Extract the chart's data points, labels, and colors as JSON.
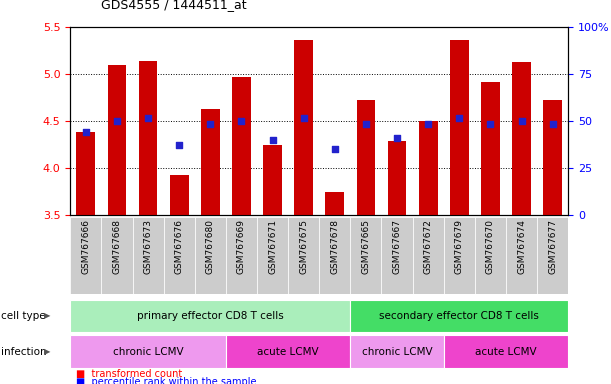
{
  "title": "GDS4555 / 1444511_at",
  "samples": [
    "GSM767666",
    "GSM767668",
    "GSM767673",
    "GSM767676",
    "GSM767680",
    "GSM767669",
    "GSM767671",
    "GSM767675",
    "GSM767678",
    "GSM767665",
    "GSM767667",
    "GSM767672",
    "GSM767679",
    "GSM767670",
    "GSM767674",
    "GSM767677"
  ],
  "bar_values": [
    4.38,
    5.09,
    5.14,
    3.93,
    4.63,
    4.97,
    4.24,
    5.36,
    3.74,
    4.72,
    4.29,
    4.5,
    5.36,
    4.91,
    5.13,
    4.72
  ],
  "dot_values": [
    4.38,
    4.5,
    4.53,
    4.24,
    4.47,
    4.5,
    4.3,
    4.53,
    4.2,
    4.47,
    4.32,
    4.47,
    4.53,
    4.47,
    4.5,
    4.47
  ],
  "ylim": [
    3.5,
    5.5
  ],
  "yticks": [
    3.5,
    4.0,
    4.5,
    5.0,
    5.5
  ],
  "right_yticks": [
    0,
    25,
    50,
    75,
    100
  ],
  "right_ytick_labels": [
    "0",
    "25",
    "50",
    "75",
    "100%"
  ],
  "bar_color": "#CC0000",
  "dot_color": "#2222CC",
  "bar_width": 0.6,
  "cell_type_groups": [
    {
      "label": "primary effector CD8 T cells",
      "start": 0,
      "end": 8,
      "color": "#AAEEBB"
    },
    {
      "label": "secondary effector CD8 T cells",
      "start": 9,
      "end": 15,
      "color": "#44DD66"
    }
  ],
  "infection_groups": [
    {
      "label": "chronic LCMV",
      "start": 0,
      "end": 4,
      "color": "#EE99EE"
    },
    {
      "label": "acute LCMV",
      "start": 5,
      "end": 8,
      "color": "#EE44CC"
    },
    {
      "label": "chronic LCMV",
      "start": 9,
      "end": 11,
      "color": "#EE99EE"
    },
    {
      "label": "acute LCMV",
      "start": 12,
      "end": 15,
      "color": "#EE44CC"
    }
  ],
  "grid_lines": [
    4.0,
    4.5,
    5.0
  ],
  "title_fontsize": 9,
  "tick_fontsize": 8,
  "label_fontsize": 7.5,
  "xtick_fontsize": 6.5
}
